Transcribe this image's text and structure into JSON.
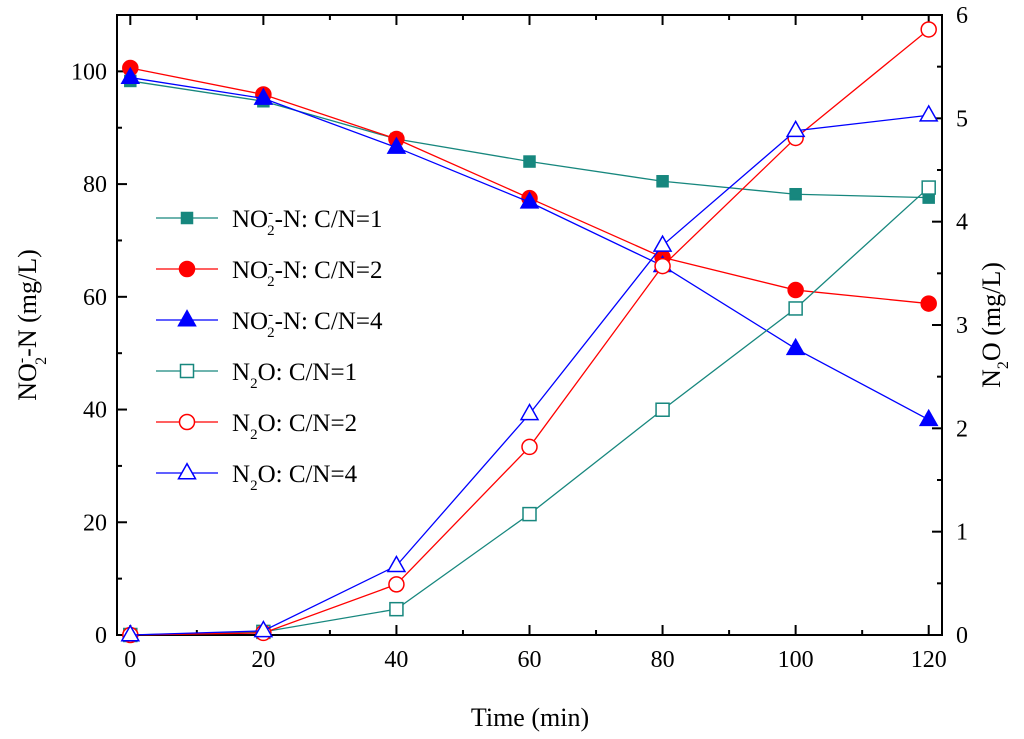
{
  "chart_data": {
    "type": "line",
    "x": [
      0,
      20,
      40,
      60,
      80,
      100,
      120
    ],
    "xlabel": "Time (min)",
    "xlim": [
      -2,
      122
    ],
    "xticks": [
      0,
      20,
      40,
      60,
      80,
      100,
      120
    ],
    "ylabel_left": {
      "main": "NO",
      "sub": "2",
      "sup": "-",
      "tail": "-N (mg/L)"
    },
    "ylim_left": [
      0,
      110
    ],
    "yticks_left": [
      0,
      20,
      40,
      60,
      80,
      100
    ],
    "ylabel_right": {
      "main": "N",
      "sub": "2",
      "tail": "O (mg/L)"
    },
    "ylim_right": [
      0,
      6
    ],
    "yticks_right": [
      0,
      1,
      2,
      3,
      4,
      5,
      6
    ],
    "legend_position": "left",
    "grid": false,
    "series": [
      {
        "label_main": "NO",
        "label_sub": "2",
        "label_sup": "-",
        "label_tail": "-N: C/N=1",
        "axis": "left",
        "color": "#17877e",
        "marker": "square",
        "filled": true,
        "values": [
          98.3,
          94.7,
          88.0,
          84.0,
          80.5,
          78.2,
          77.6
        ]
      },
      {
        "label_main": "NO",
        "label_sub": "2",
        "label_sup": "-",
        "label_tail": "-N: C/N=2",
        "axis": "left",
        "color": "#ff0000",
        "marker": "circle",
        "filled": true,
        "values": [
          100.6,
          95.9,
          88.0,
          77.5,
          67.0,
          61.2,
          58.8
        ]
      },
      {
        "label_main": "NO",
        "label_sub": "2",
        "label_sup": "-",
        "label_tail": "-N: C/N=4",
        "axis": "left",
        "color": "#0000ff",
        "marker": "triangle",
        "filled": true,
        "values": [
          98.9,
          95.2,
          86.5,
          76.8,
          65.5,
          50.8,
          38.2
        ]
      },
      {
        "label_main": "N",
        "label_sub": "2",
        "label_tail": "O: C/N=1",
        "axis": "right",
        "color": "#17877e",
        "marker": "square",
        "filled": false,
        "values": [
          0.0,
          0.03,
          0.25,
          1.17,
          2.18,
          3.16,
          4.33
        ]
      },
      {
        "label_main": "N",
        "label_sub": "2",
        "label_tail": "O: C/N=2",
        "axis": "right",
        "color": "#ff0000",
        "marker": "circle",
        "filled": false,
        "values": [
          0.0,
          0.02,
          0.49,
          1.82,
          3.57,
          4.81,
          5.86
        ]
      },
      {
        "label_main": "N",
        "label_sub": "2",
        "label_tail": "O: C/N=4",
        "axis": "right",
        "color": "#0000ff",
        "marker": "triangle",
        "filled": false,
        "values": [
          0.0,
          0.04,
          0.67,
          2.14,
          3.77,
          4.88,
          5.03
        ]
      }
    ]
  }
}
